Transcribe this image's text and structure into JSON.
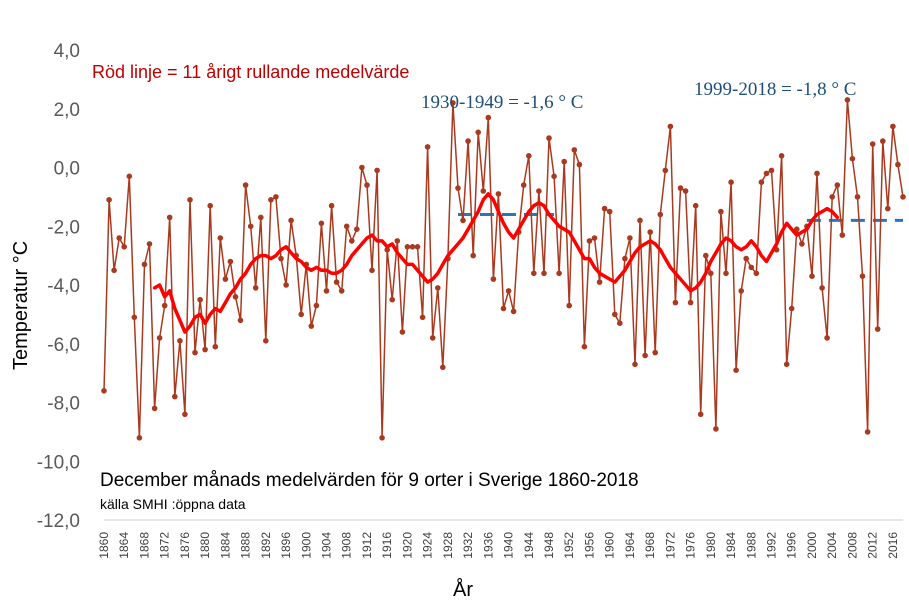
{
  "chart_data": {
    "type": "line",
    "title": "December månads medelvärden för 9 orter i Sverige 1860-2018",
    "subtitle": "källa SMHI :öppna data",
    "xlabel": "År",
    "ylabel": "Temperatur °C",
    "ylim": [
      -12,
      4
    ],
    "yticks": [
      "4,0",
      "2,0",
      "0,0",
      "-2,0",
      "-4,0",
      "-6,0",
      "-8,0",
      "-10,0",
      "-12,0"
    ],
    "xtick_labels": [
      "1860",
      "1864",
      "1868",
      "1872",
      "1876",
      "1880",
      "1884",
      "1888",
      "1892",
      "1896",
      "1900",
      "1904",
      "1908",
      "1912",
      "1916",
      "1920",
      "1924",
      "1928",
      "1932",
      "1936",
      "1940",
      "1944",
      "1948",
      "1952",
      "1956",
      "1960",
      "1964",
      "1968",
      "1972",
      "1976",
      "1980",
      "1984",
      "1988",
      "1992",
      "1996",
      "2000",
      "2004",
      "2008",
      "2012",
      "2016"
    ],
    "grid": false,
    "colors": {
      "series": "#a93a1f",
      "rolling": "#ff0000",
      "period": "#2e75b6",
      "annotation_red": "#c00000",
      "annotation_blue": "#1f4e79"
    },
    "annotations": {
      "rolling_note": "Röd linje = 11 årigt rullande medelvärde",
      "period_1": "1930-1949 = -1,6 ° C",
      "period_2": "1999-2018 = -1,8 ° C"
    },
    "series": [
      {
        "name": "December medelvärde",
        "x_start": 1860,
        "values": [
          -7.6,
          -1.1,
          -3.5,
          -2.4,
          -2.7,
          -0.3,
          -5.1,
          -9.2,
          -3.3,
          -2.6,
          -8.2,
          -5.8,
          -4.7,
          -1.7,
          -7.8,
          -5.9,
          -8.4,
          -1.1,
          -6.3,
          -4.5,
          -6.2,
          -1.3,
          -6.1,
          -2.4,
          -3.8,
          -3.2,
          -4.4,
          -5.2,
          -0.6,
          -2.0,
          -4.1,
          -1.7,
          -5.9,
          -1.1,
          -1.0,
          -3.1,
          -4.0,
          -1.8,
          -3.0,
          -5.0,
          -3.3,
          -5.4,
          -4.7,
          -1.9,
          -4.2,
          -1.3,
          -3.9,
          -4.2,
          -2.0,
          -2.5,
          -2.1,
          0.0,
          -0.6,
          -3.5,
          -0.1,
          -9.2,
          -2.8,
          -4.5,
          -2.5,
          -5.6,
          -2.7,
          -2.7,
          -2.7,
          -5.1,
          0.7,
          -5.8,
          -4.1,
          -6.8,
          -3.1,
          2.2,
          -0.7,
          -1.8,
          0.9,
          -3.0,
          1.2,
          -0.8,
          1.7,
          -3.8,
          -0.9,
          -4.8,
          -4.2,
          -4.9,
          -2.2,
          -0.6,
          0.4,
          -3.6,
          -0.8,
          -3.6,
          1.0,
          -0.3,
          -3.6,
          0.2,
          -4.7,
          0.6,
          0.1,
          -6.1,
          -2.5,
          -2.4,
          -3.9,
          -1.4,
          -1.5,
          -5.0,
          -5.3,
          -3.1,
          -2.4,
          -6.7,
          -1.8,
          -6.4,
          -2.2,
          -6.3,
          -1.6,
          -0.1,
          1.4,
          -4.6,
          -0.7,
          -0.8,
          -4.6,
          -1.3,
          -8.4,
          -3.0,
          -3.6,
          -8.9,
          -1.5,
          -3.6,
          -0.5,
          -6.9,
          -4.2,
          -3.1,
          -3.4,
          -3.6,
          -0.5,
          -0.2,
          -0.1,
          -2.8,
          0.4,
          -6.7,
          -4.8,
          -2.1,
          -2.6,
          -2.0,
          -3.7,
          -0.2,
          -4.1,
          -5.8,
          -1.0,
          -0.6,
          -2.3,
          2.3,
          0.3,
          -1.0,
          -3.7,
          -9.0,
          0.8,
          -5.5,
          0.9,
          -1.4,
          1.4,
          0.1,
          -1.0
        ]
      },
      {
        "name": "11 årigt rullande medelvärde",
        "x_start": 1870,
        "values": [
          -4.1,
          -4.0,
          -4.4,
          -4.2,
          -4.8,
          -5.2,
          -5.6,
          -5.4,
          -5.1,
          -5.0,
          -5.3,
          -5.0,
          -4.8,
          -4.9,
          -4.6,
          -4.3,
          -4.1,
          -3.8,
          -3.6,
          -3.3,
          -3.1,
          -3.0,
          -3.0,
          -3.1,
          -3.0,
          -2.8,
          -2.7,
          -2.9,
          -3.1,
          -3.2,
          -3.4,
          -3.5,
          -3.4,
          -3.5,
          -3.5,
          -3.6,
          -3.6,
          -3.5,
          -3.3,
          -3.0,
          -2.8,
          -2.6,
          -2.4,
          -2.3,
          -2.5,
          -2.5,
          -2.7,
          -2.6,
          -2.9,
          -3.1,
          -3.3,
          -3.3,
          -3.5,
          -3.7,
          -3.9,
          -3.8,
          -3.6,
          -3.3,
          -3.0,
          -2.8,
          -2.6,
          -2.4,
          -2.1,
          -1.8,
          -1.5,
          -1.1,
          -0.9,
          -1.1,
          -1.5,
          -1.9,
          -2.2,
          -2.4,
          -2.1,
          -1.8,
          -1.5,
          -1.3,
          -1.2,
          -1.3,
          -1.6,
          -1.8,
          -2.0,
          -2.1,
          -2.2,
          -2.5,
          -2.8,
          -3.1,
          -3.1,
          -3.4,
          -3.6,
          -3.7,
          -3.8,
          -3.9,
          -3.7,
          -3.5,
          -3.2,
          -2.9,
          -2.7,
          -2.6,
          -2.5,
          -2.6,
          -2.8,
          -3.1,
          -3.4,
          -3.6,
          -3.8,
          -4.0,
          -4.2,
          -4.1,
          -3.9,
          -3.6,
          -3.2,
          -2.9,
          -2.6,
          -2.4,
          -2.5,
          -2.7,
          -2.8,
          -2.7,
          -2.5,
          -2.7,
          -3.0,
          -3.2,
          -2.9,
          -2.6,
          -2.2,
          -1.9,
          -2.1,
          -2.3,
          -2.2,
          -2.1,
          -1.8,
          -1.6,
          -1.5,
          -1.4,
          -1.5,
          -1.7
        ]
      }
    ],
    "period_means": [
      {
        "start": 1930,
        "end": 1949,
        "value": -1.6
      },
      {
        "start": 1999,
        "end": 2018,
        "value": -1.8
      }
    ]
  }
}
